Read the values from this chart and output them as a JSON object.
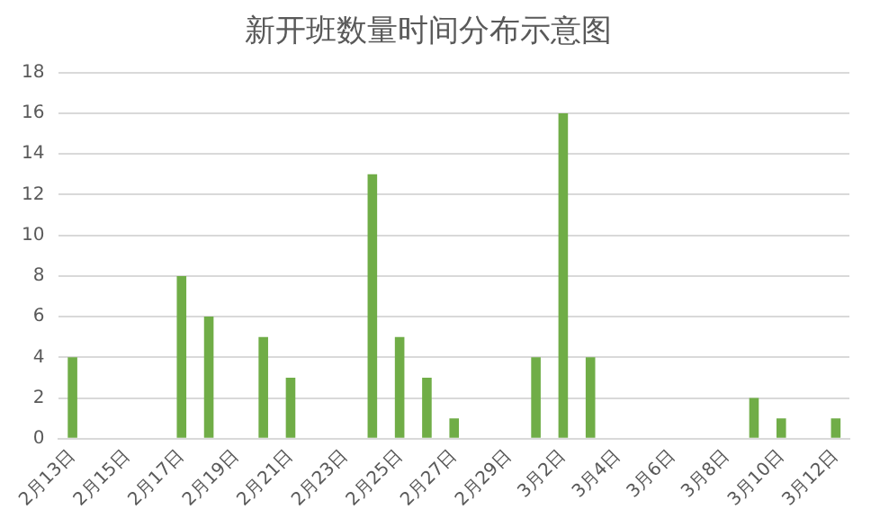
{
  "chart_data": {
    "type": "bar",
    "title": "新开班数量时间分布示意图",
    "categories": [
      "2月13日",
      null,
      "2月15日",
      null,
      "2月17日",
      null,
      "2月19日",
      null,
      "2月21日",
      null,
      "2月23日",
      null,
      "2月25日",
      null,
      "2月27日",
      null,
      "2月29日",
      null,
      "3月2日",
      null,
      "3月4日",
      null,
      "3月6日",
      null,
      "3月8日",
      null,
      "3月10日",
      null,
      "3月12日"
    ],
    "values": [
      4,
      0,
      0,
      0,
      8,
      6,
      0,
      5,
      3,
      0,
      0,
      13,
      5,
      3,
      1,
      0,
      0,
      4,
      16,
      4,
      0,
      0,
      0,
      0,
      0,
      2,
      1,
      0,
      1
    ],
    "color": "#70ad47",
    "ylim": [
      0,
      18
    ],
    "yticks": [
      0,
      2,
      4,
      6,
      8,
      10,
      12,
      14,
      16,
      18
    ],
    "grid": "y",
    "legend": false
  }
}
